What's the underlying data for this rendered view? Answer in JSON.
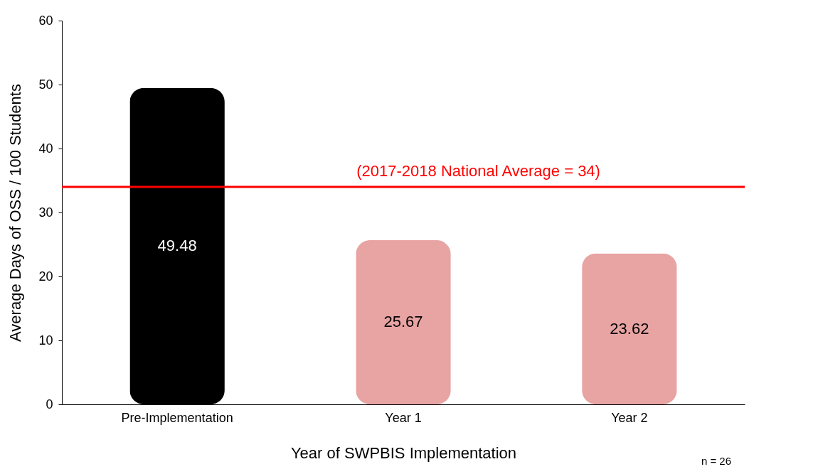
{
  "chart_data": {
    "type": "bar",
    "xlabel": "Year of SWPBIS Implementation",
    "ylabel": "Average Days of OSS / 100 Students",
    "categories": [
      "Pre-Implementation",
      "Year 1",
      "Year 2"
    ],
    "values": [
      49.48,
      25.67,
      23.62
    ],
    "colors": [
      "#000000",
      "#e8a3a3",
      "#e8a3a3"
    ],
    "ylim": [
      0,
      60
    ],
    "yticks": [
      0,
      10,
      20,
      30,
      40,
      50,
      60
    ],
    "data_labels": true,
    "ref_lines": [
      {
        "axis": "y",
        "value": 34,
        "label": "(2017-2018 National Average = 34)",
        "color": "#ff0000"
      }
    ],
    "annotations": [
      "n = 26"
    ]
  }
}
